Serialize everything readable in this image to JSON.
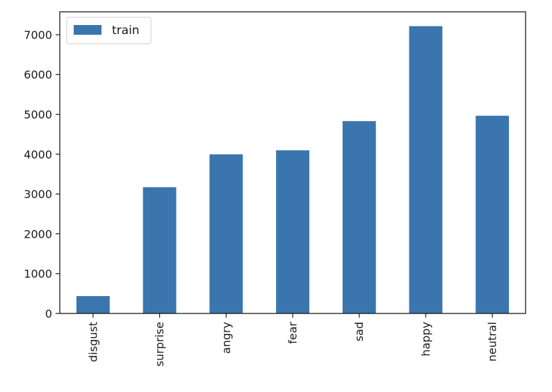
{
  "chart_data": {
    "type": "bar",
    "categories": [
      "disgust",
      "surprise",
      "angry",
      "fear",
      "sad",
      "happy",
      "neutral"
    ],
    "series": [
      {
        "name": "train",
        "values": [
          436,
          3171,
          3995,
          4097,
          4830,
          7215,
          4965
        ],
        "color": "#3a75ae"
      }
    ],
    "ylim": [
      0,
      7575
    ],
    "yticks": [
      0,
      1000,
      2000,
      3000,
      4000,
      5000,
      6000,
      7000
    ],
    "ytick_labels": [
      "0",
      "1000",
      "2000",
      "3000",
      "4000",
      "5000",
      "6000",
      "7000"
    ],
    "xtick_rotation": "vertical",
    "legend_position": "top-left",
    "grid": false,
    "title": "",
    "xlabel": "",
    "ylabel": ""
  }
}
